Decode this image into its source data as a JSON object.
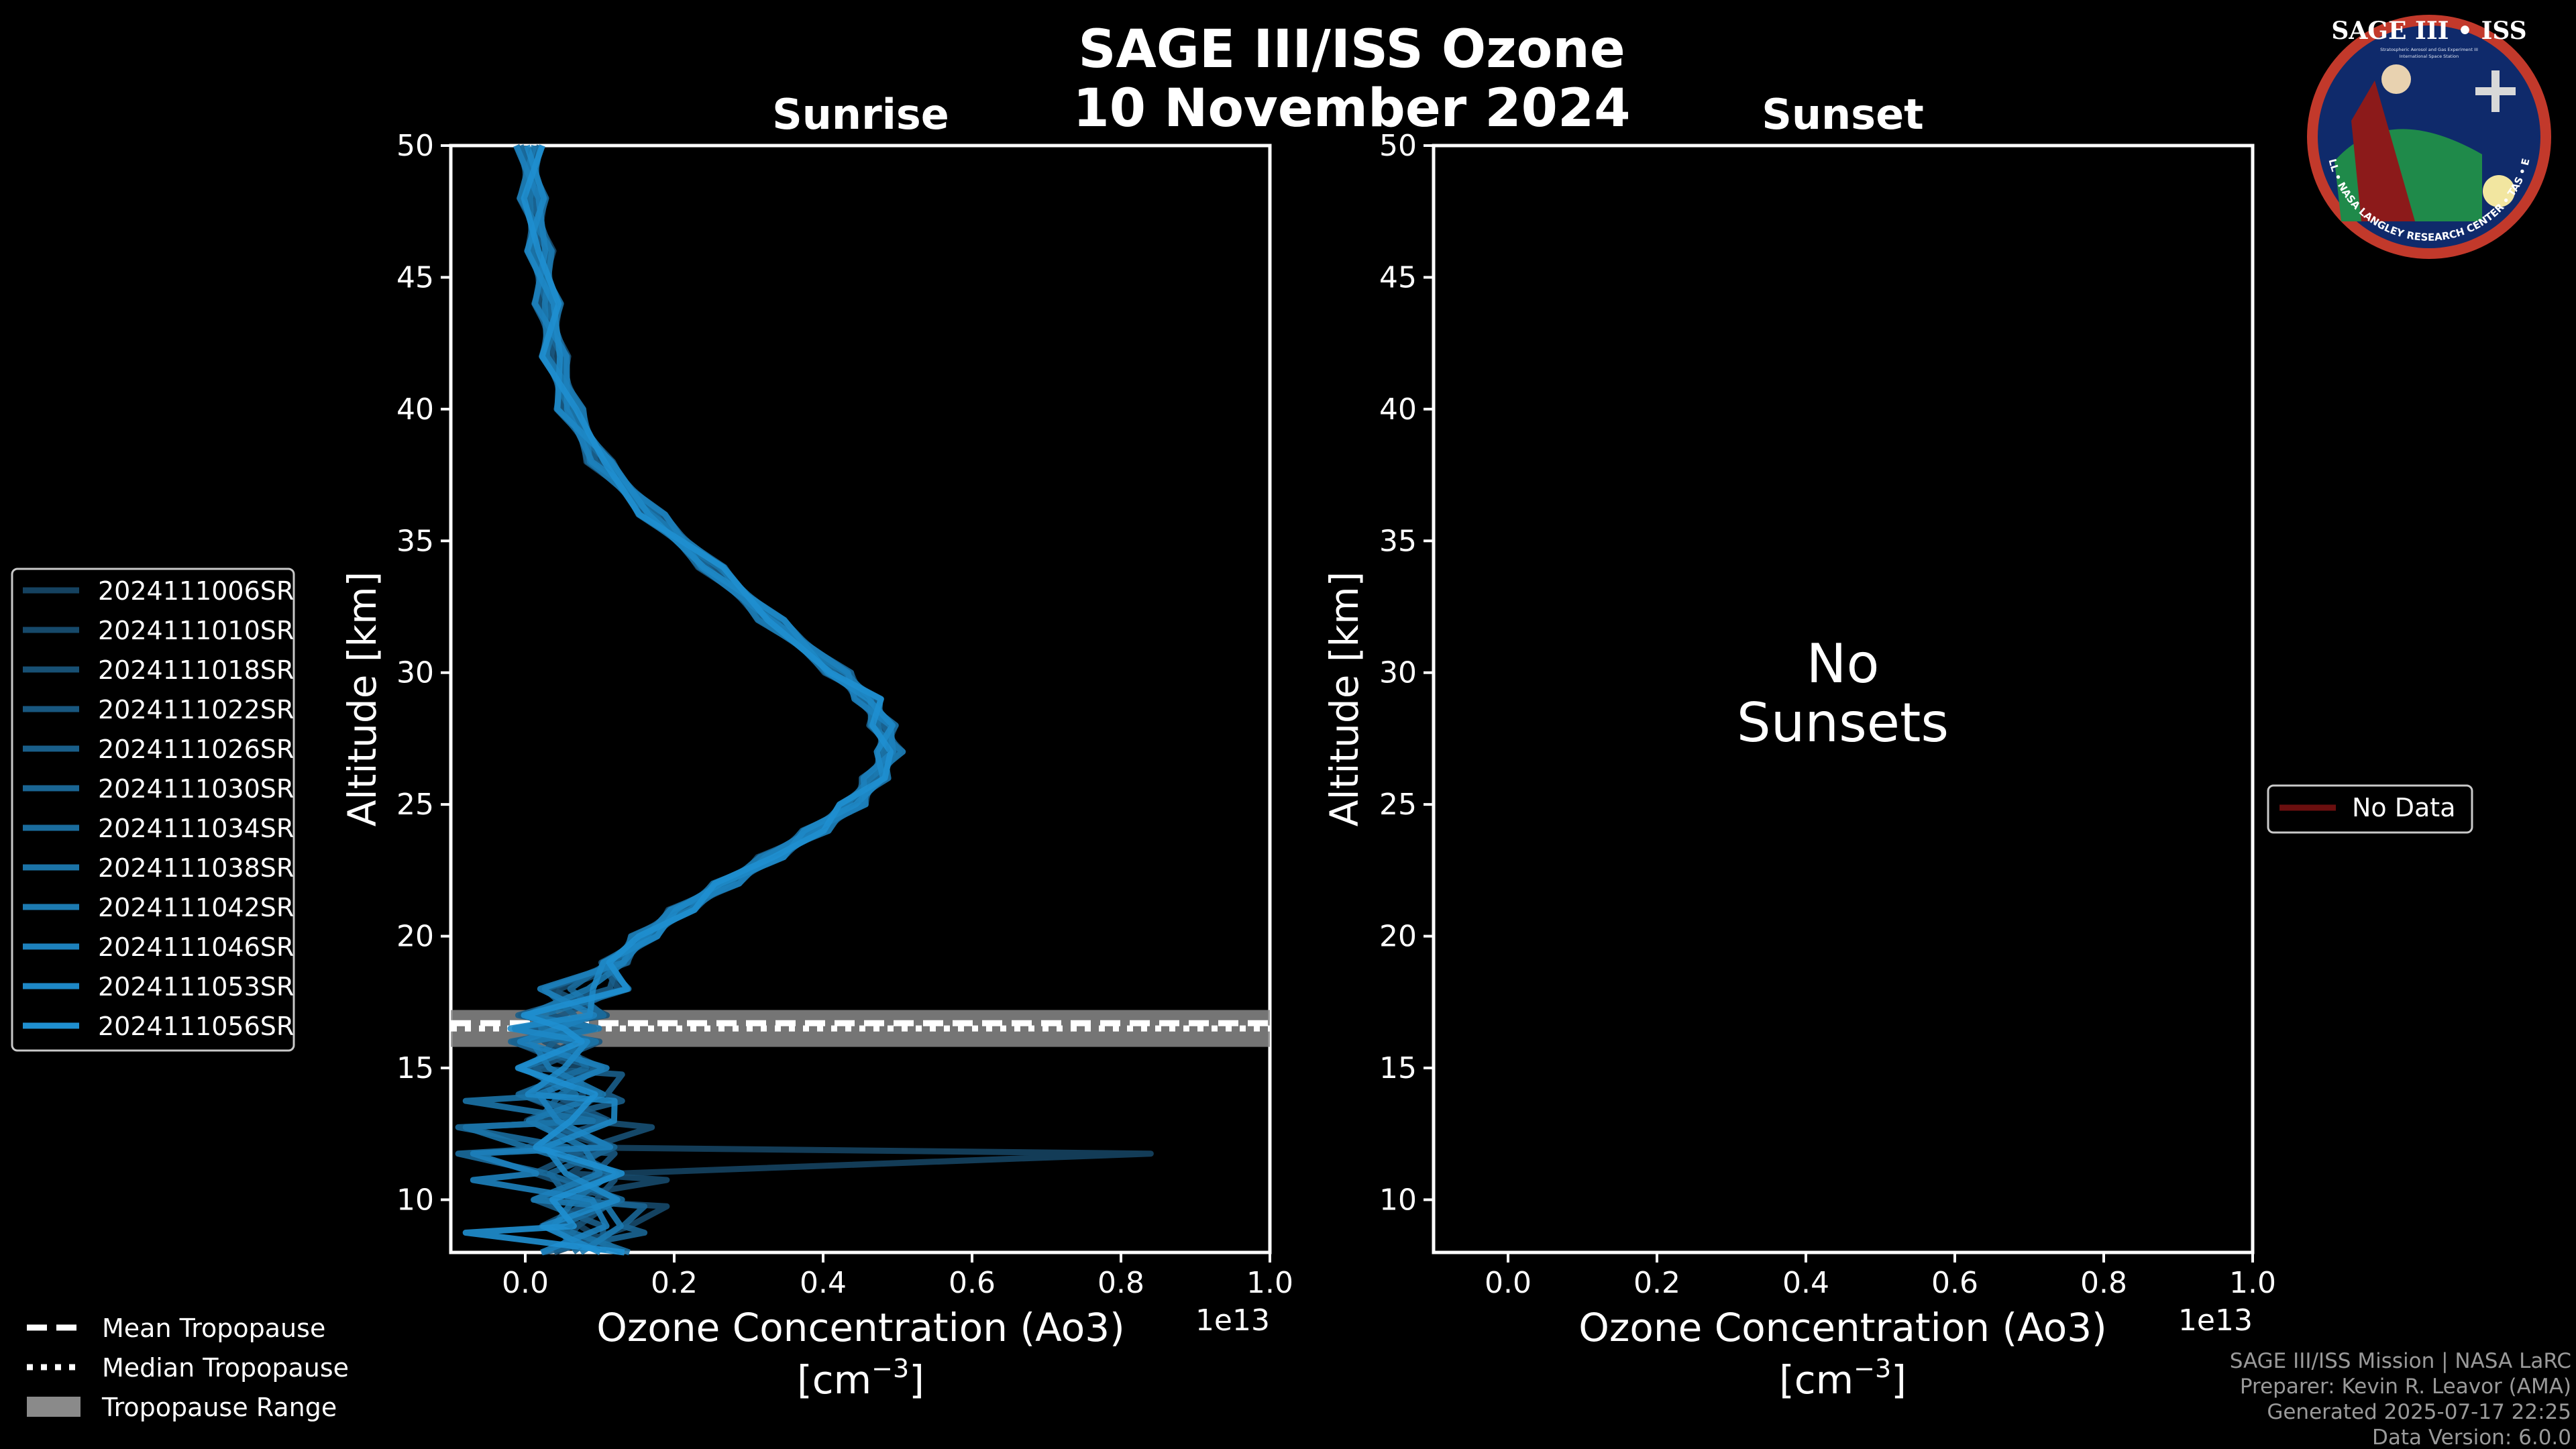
{
  "title": "SAGE III/ISS Ozone",
  "date": "10 November 2024",
  "badge": {
    "line1": "SAGE III • ISS",
    "line2": "Stratospheric Aerosol and Gas Experiment III",
    "line3": "International Space Station",
    "ring": "BALL • NASA LANGLEY RESEARCH CENTER • TAS • ESA"
  },
  "colors": {
    "background": "#000000",
    "profile_dark": "#154260",
    "profile_light": "#1f8fd0",
    "tropopause_band": "#8a8a8a",
    "no_data": "#6b0f0f"
  },
  "chart_data": [
    {
      "type": "line",
      "title": "Sunrise",
      "xlabel": "Ozone Concentration (Ao3)",
      "xunit": "[cm$^{-3}$]",
      "xunit_text": "[cm",
      "xunit_exp": "−3",
      "xunit_close": "]",
      "ylabel": "Altitude [km]",
      "x_scale_label": "1e13",
      "xlim": [
        -0.1,
        1.0
      ],
      "ylim": [
        8,
        50
      ],
      "xticks": [
        "0.0",
        "0.2",
        "0.4",
        "0.6",
        "0.8",
        "1.0"
      ],
      "yticks": [
        "10",
        "15",
        "20",
        "25",
        "30",
        "35",
        "40",
        "45",
        "50"
      ],
      "altitude": [
        50,
        48,
        46,
        44,
        42,
        40,
        38,
        36,
        34,
        32,
        30,
        29,
        28,
        27,
        26,
        25,
        24,
        23,
        22,
        21,
        20,
        19,
        18,
        17,
        16.5,
        16,
        15,
        14,
        13,
        12,
        11,
        10,
        9,
        8
      ],
      "mean_profile": [
        0.005,
        0.01,
        0.02,
        0.03,
        0.04,
        0.06,
        0.1,
        0.17,
        0.25,
        0.33,
        0.42,
        0.46,
        0.48,
        0.49,
        0.47,
        0.44,
        0.39,
        0.33,
        0.27,
        0.21,
        0.16,
        0.12,
        0.08,
        0.05,
        0.04,
        0.04,
        0.05,
        0.05,
        0.06,
        0.06,
        0.07,
        0.07,
        0.08,
        0.08
      ],
      "series": [
        {
          "name": "2024111006SR",
          "spike_alt": 12.0,
          "spike_val": 0.84
        },
        {
          "name": "2024111010SR",
          "spike_alt": 10.5,
          "spike_val": 0.19
        },
        {
          "name": "2024111018SR",
          "spike_alt": 13.0,
          "spike_val": 0.17
        },
        {
          "name": "2024111022SR",
          "spike_alt": 11.2,
          "spike_val": 0.12
        },
        {
          "name": "2024111026SR",
          "spike_alt": 14.5,
          "spike_val": 0.13
        },
        {
          "name": "2024111030SR",
          "spike_alt": 9.5,
          "spike_val": 0.16
        },
        {
          "name": "2024111034SR",
          "spike_alt": 12.5,
          "spike_val": -0.09
        },
        {
          "name": "2024111038SR",
          "spike_alt": 13.8,
          "spike_val": -0.08
        },
        {
          "name": "2024111042SR",
          "spike_alt": 10.0,
          "spike_val": 0.11
        },
        {
          "name": "2024111046SR",
          "spike_alt": 11.8,
          "spike_val": -0.07
        },
        {
          "name": "2024111053SR",
          "spike_alt": 14.0,
          "spike_val": 0.12
        },
        {
          "name": "2024111056SR",
          "spike_alt": 9.0,
          "spike_val": -0.08
        }
      ],
      "tropopause": {
        "mean": 16.7,
        "median": 16.5,
        "range": [
          15.8,
          17.2
        ]
      }
    },
    {
      "type": "line",
      "title": "Sunset",
      "xlabel": "Ozone Concentration (Ao3)",
      "xunit": "[cm$^{-3}$]",
      "xunit_text": "[cm",
      "xunit_exp": "−3",
      "xunit_close": "]",
      "ylabel": "Altitude [km]",
      "x_scale_label": "1e13",
      "xlim": [
        -0.1,
        1.0
      ],
      "ylim": [
        8,
        50
      ],
      "xticks": [
        "0.0",
        "0.2",
        "0.4",
        "0.6",
        "0.8",
        "1.0"
      ],
      "yticks": [
        "10",
        "15",
        "20",
        "25",
        "30",
        "35",
        "40",
        "45",
        "50"
      ],
      "series": [],
      "annotation": [
        "No",
        "Sunsets"
      ],
      "legend": [
        "No Data"
      ]
    }
  ],
  "tropopause_legend": [
    "Mean Tropopause",
    "Median Tropopause",
    "Tropopause Range"
  ],
  "footer": [
    "SAGE III/ISS Mission | NASA LaRC",
    "Preparer: Kevin R. Leavor (AMA)",
    "Generated 2025-07-17 22:25",
    "Data Version: 6.0.0"
  ]
}
